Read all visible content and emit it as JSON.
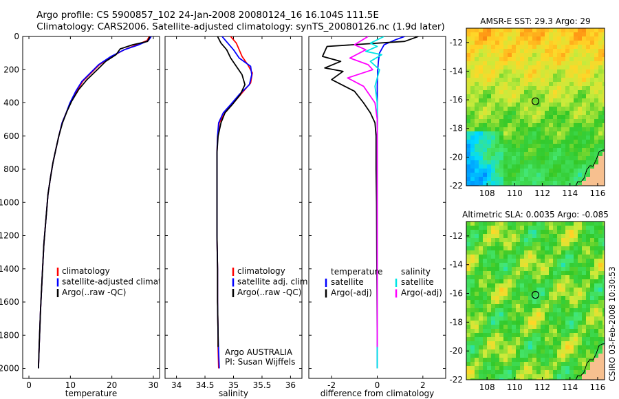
{
  "title": {
    "line1": "Argo profile: CS 5900857_102 24-Jan-2008 20080124_16 16.104S 111.5E",
    "line2": "Climatology: CARS2006. Satellite-adjusted climatology: synTS_20080126.nc (1.9d later)"
  },
  "depth_axis": {
    "range": [
      0,
      2060
    ],
    "ticks": [
      0,
      200,
      400,
      600,
      800,
      1000,
      1200,
      1400,
      1600,
      1800,
      2000
    ]
  },
  "colors": {
    "climatology": "#ff0000",
    "satellite": "#0000ff",
    "argo": "#000000",
    "sal_satellite": "#00e5e5",
    "sal_argo": "#ff00ff",
    "circle": "#000000"
  },
  "chart_data": [
    {
      "id": "temperature",
      "type": "line",
      "xlabel": "temperature",
      "xlim": [
        -1.5,
        31.5
      ],
      "xticks": [
        0,
        10,
        20,
        30
      ],
      "y_inverted": true,
      "series": [
        {
          "name": "climatology",
          "x": [
            29,
            28.5,
            26,
            23,
            20,
            17,
            15,
            13,
            11.5,
            10,
            9,
            8,
            7.2,
            6.5,
            5.8,
            5.2,
            4.6,
            4.1,
            3.6,
            3.2,
            2.8,
            2.5,
            2.3
          ],
          "y": [
            0,
            25,
            50,
            80,
            120,
            170,
            220,
            270,
            330,
            400,
            460,
            520,
            600,
            680,
            760,
            850,
            950,
            1100,
            1250,
            1450,
            1650,
            1850,
            2000
          ]
        },
        {
          "name": "satellite-adjusted climatology",
          "x": [
            29.5,
            28.8,
            26.5,
            23,
            19.8,
            16.8,
            14.8,
            12.8,
            11.3,
            9.9,
            9,
            8,
            7.2,
            6.5,
            5.8,
            5.2,
            4.6,
            4.1,
            3.6,
            3.2,
            2.8,
            2.5,
            2.3
          ],
          "y": [
            0,
            25,
            50,
            80,
            120,
            170,
            220,
            270,
            330,
            400,
            460,
            520,
            600,
            680,
            760,
            850,
            950,
            1100,
            1250,
            1450,
            1650,
            1850,
            2000
          ]
        },
        {
          "name": "Argo(..raw -QC)",
          "x": [
            29.2,
            28.6,
            25,
            22,
            21,
            18.5,
            16.5,
            14,
            12,
            10.3,
            9.2,
            8.1,
            7.2,
            6.5,
            5.8,
            5.2,
            4.6,
            4.1,
            3.6,
            3.2,
            2.8,
            2.5,
            2.3
          ],
          "y": [
            0,
            30,
            50,
            75,
            110,
            150,
            200,
            260,
            320,
            390,
            450,
            520,
            600,
            680,
            760,
            850,
            950,
            1100,
            1250,
            1450,
            1650,
            1850,
            2000
          ]
        }
      ],
      "legend": [
        "climatology",
        "satellite-adjusted climatology",
        "Argo(..raw -QC)"
      ]
    },
    {
      "id": "salinity",
      "type": "line",
      "xlabel": "salinity",
      "xlim": [
        33.8,
        36.2
      ],
      "xticks": [
        34,
        34.5,
        35,
        35.5,
        36
      ],
      "xtick_labels": [
        "34",
        "34.5",
        "35",
        "35.5",
        "36"
      ],
      "y_inverted": true,
      "series": [
        {
          "name": "climatology",
          "x": [
            34.95,
            35.05,
            35.1,
            35.15,
            35.25,
            35.33,
            35.3,
            35.15,
            35.0,
            34.85,
            34.75,
            34.72,
            34.71,
            34.71,
            34.71,
            34.71,
            34.72,
            34.72,
            34.73,
            34.73,
            34.74
          ],
          "y": [
            0,
            40,
            80,
            120,
            170,
            220,
            280,
            340,
            400,
            460,
            520,
            600,
            700,
            800,
            1000,
            1200,
            1400,
            1600,
            1800,
            1880,
            2000
          ]
        },
        {
          "name": "satellite adj. clim.",
          "x": [
            34.8,
            34.9,
            35.0,
            35.1,
            35.3,
            35.32,
            35.28,
            35.1,
            34.95,
            34.82,
            34.74,
            34.72,
            34.71,
            34.71,
            34.71,
            34.71,
            34.72,
            34.72,
            34.73,
            34.74,
            34.75
          ],
          "y": [
            0,
            40,
            80,
            130,
            180,
            230,
            290,
            350,
            410,
            460,
            520,
            600,
            700,
            800,
            1000,
            1200,
            1400,
            1600,
            1800,
            1900,
            2000
          ]
        },
        {
          "name": "Argo(..raw -QC)",
          "x": [
            34.72,
            34.78,
            34.88,
            34.95,
            35.05,
            35.15,
            35.2,
            35.12,
            34.98,
            34.85,
            34.78,
            34.73,
            34.71,
            34.71,
            34.71,
            34.71,
            34.72,
            34.72,
            34.73,
            34.73
          ],
          "y": [
            0,
            40,
            80,
            130,
            180,
            230,
            290,
            350,
            410,
            460,
            520,
            600,
            700,
            800,
            1000,
            1200,
            1400,
            1600,
            1800,
            1870
          ]
        }
      ],
      "legend": [
        "climatology",
        "satellite adj. clim.",
        "Argo(..raw -QC)"
      ],
      "annotation": [
        "Argo AUSTRALIA",
        "PI: Susan Wijffels"
      ]
    },
    {
      "id": "difference",
      "type": "line",
      "xlabel": "difference from climatology",
      "xlim": [
        -3.0,
        3.0
      ],
      "xticks": [
        -2,
        0,
        2
      ],
      "y_inverted": true,
      "series": [
        {
          "name": "temperature satellite",
          "x": [
            1.2,
            0.8,
            0.3,
            0.1,
            0.05,
            0.02,
            0,
            0,
            0.01,
            0,
            0,
            0,
            0,
            0,
            0,
            0,
            0
          ],
          "y": [
            0,
            20,
            50,
            100,
            150,
            200,
            300,
            400,
            500,
            600,
            800,
            1000,
            1200,
            1400,
            1600,
            1800,
            2000
          ]
        },
        {
          "name": "temperature Argo(-adj)",
          "x": [
            1.8,
            1.2,
            -2.2,
            -2.4,
            -1.6,
            -2.3,
            -1.5,
            -2.0,
            -1.0,
            -0.6,
            -0.3,
            -0.1,
            -0.05,
            -0.05,
            -0.03,
            -0.02,
            -0.01,
            0
          ],
          "y": [
            0,
            30,
            60,
            120,
            150,
            190,
            210,
            260,
            330,
            400,
            460,
            520,
            600,
            800,
            1000,
            1300,
            1600,
            1870
          ]
        },
        {
          "name": "salinity satellite",
          "x": [
            0.3,
            -0.3,
            0,
            -0.5,
            0.2,
            -0.3,
            0.1,
            -0.1,
            0,
            0,
            0,
            0,
            0,
            0,
            0,
            0,
            0,
            0
          ],
          "y": [
            0,
            40,
            60,
            90,
            110,
            150,
            200,
            300,
            400,
            500,
            600,
            800,
            1000,
            1200,
            1400,
            1600,
            1800,
            2000
          ]
        },
        {
          "name": "salinity Argo(-adj)",
          "x": [
            -0.4,
            -1.0,
            -0.5,
            -1.2,
            -0.4,
            -0.2,
            -1.3,
            -0.6,
            -0.1,
            0,
            0,
            0,
            0,
            0
          ],
          "y": [
            0,
            50,
            80,
            130,
            170,
            200,
            250,
            300,
            400,
            500,
            700,
            1000,
            1500,
            1870
          ]
        }
      ],
      "legend_left": {
        "heading": "temperature",
        "items": [
          "satellite",
          "Argo(-adj)"
        ]
      },
      "legend_right": {
        "heading": "salinity",
        "items": [
          "satellite",
          "Argo(-adj)"
        ]
      }
    },
    {
      "id": "map-sst",
      "type": "heatmap",
      "title": "AMSR-E SST: 29.3 Argo: 29",
      "xlim": [
        106.5,
        116.5
      ],
      "ylim": [
        -22,
        -11
      ],
      "xticks": [
        108,
        110,
        112,
        114,
        116
      ],
      "yticks": [
        -12,
        -14,
        -16,
        -18,
        -20,
        -22
      ],
      "marker": {
        "lon": 111.5,
        "lat": -16.1
      }
    },
    {
      "id": "map-sla",
      "type": "heatmap",
      "title": "Altimetric SLA: 0.0035 Argo: -0.085",
      "xlim": [
        106.5,
        116.5
      ],
      "ylim": [
        -22,
        -11
      ],
      "xticks": [
        108,
        110,
        112,
        114,
        116
      ],
      "yticks": [
        -12,
        -14,
        -16,
        -18,
        -20,
        -22
      ],
      "marker": {
        "lon": 111.5,
        "lat": -16.1
      }
    }
  ],
  "stamp": "CSIRO 03-Feb-2008 10:30:53"
}
